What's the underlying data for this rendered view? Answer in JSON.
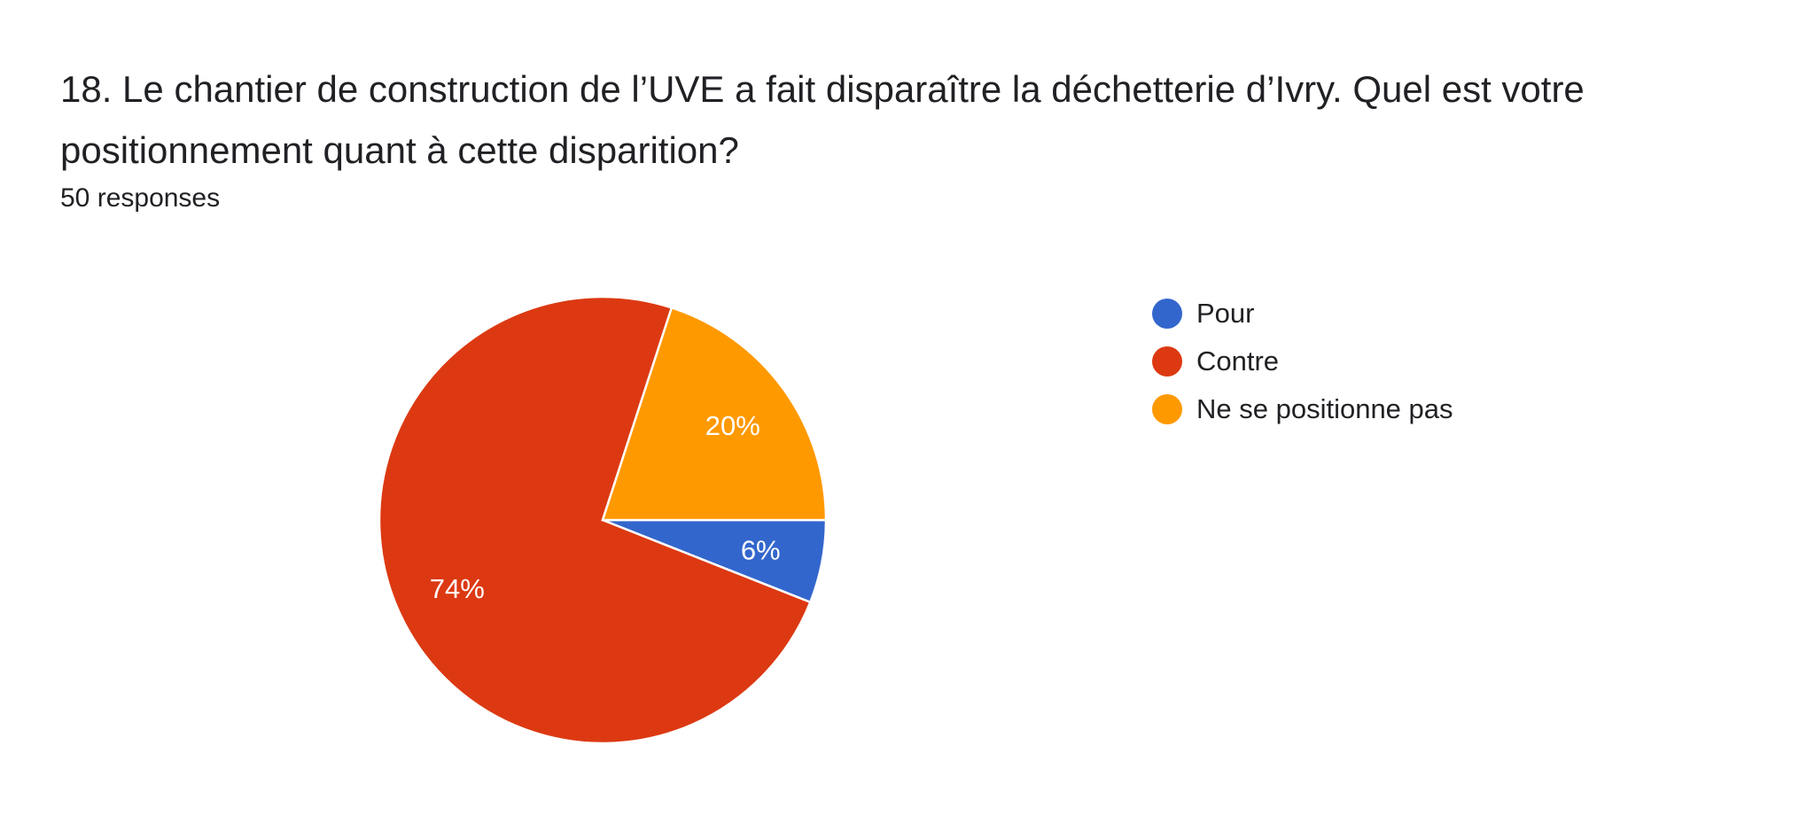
{
  "question": {
    "title": "18. Le chantier de construction de l’UVE a fait disparaître la déchetterie d’Ivry. Quel est votre positionnement quant à cette disparition?",
    "response_count": "50 responses"
  },
  "chart_data": {
    "type": "pie",
    "title": "",
    "categories": [
      "Pour",
      "Contre",
      "Ne se positionne pas"
    ],
    "values": [
      6,
      74,
      20
    ],
    "labels": [
      "6%",
      "74%",
      "20%"
    ],
    "colors": [
      "#3366cc",
      "#dc3912",
      "#ff9900"
    ],
    "legend_position": "right",
    "start": "3 o'clock, clockwise"
  },
  "legend": {
    "items": [
      {
        "label": "Pour",
        "color": "#3366cc"
      },
      {
        "label": "Contre",
        "color": "#dc3912"
      },
      {
        "label": "Ne se positionne pas",
        "color": "#ff9900"
      }
    ]
  }
}
